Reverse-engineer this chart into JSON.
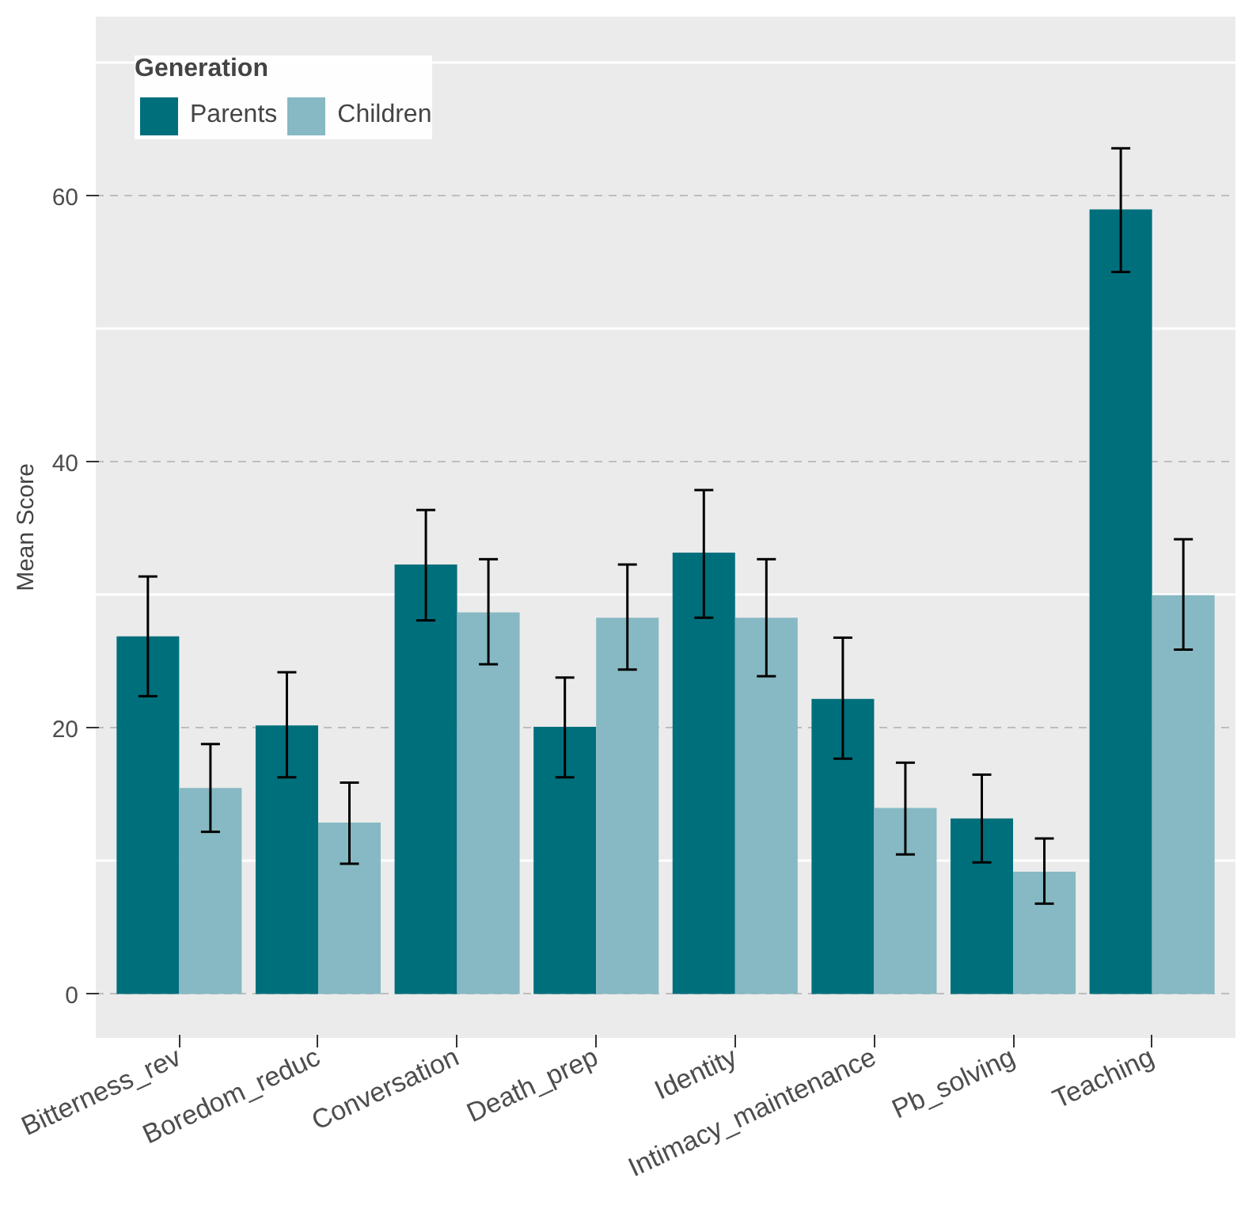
{
  "chart_data": {
    "type": "bar",
    "ylabel": "Mean Score",
    "legend_title": "Generation",
    "categories": [
      "Bitterness_rev",
      "Boredom_reduc",
      "Conversation",
      "Death_prep",
      "Identity",
      "Intimacy_maintenance",
      "Pb_solving",
      "Teaching"
    ],
    "series": [
      {
        "name": "Parents",
        "color": "#006f7c",
        "values": [
          26.9,
          20.2,
          32.3,
          20.1,
          33.2,
          22.2,
          13.2,
          59.0
        ],
        "errors": [
          [
            22.4,
            31.4
          ],
          [
            16.3,
            24.2
          ],
          [
            28.1,
            36.4
          ],
          [
            16.3,
            23.8
          ],
          [
            28.3,
            37.9
          ],
          [
            17.7,
            26.8
          ],
          [
            9.9,
            16.5
          ],
          [
            54.3,
            63.6
          ]
        ]
      },
      {
        "name": "Children",
        "color": "#86b9c3",
        "values": [
          15.5,
          12.9,
          28.7,
          28.3,
          28.3,
          14.0,
          9.2,
          30.0
        ],
        "errors": [
          [
            12.2,
            18.8
          ],
          [
            9.8,
            15.9
          ],
          [
            24.8,
            32.7
          ],
          [
            24.4,
            32.3
          ],
          [
            23.9,
            32.7
          ],
          [
            10.5,
            17.4
          ],
          [
            6.8,
            11.7
          ],
          [
            25.9,
            34.2
          ]
        ]
      }
    ],
    "ylim": [
      -3.3,
      73.5
    ],
    "yticks": [
      0,
      20,
      40,
      60
    ],
    "grid": "y",
    "legend": "top left"
  }
}
